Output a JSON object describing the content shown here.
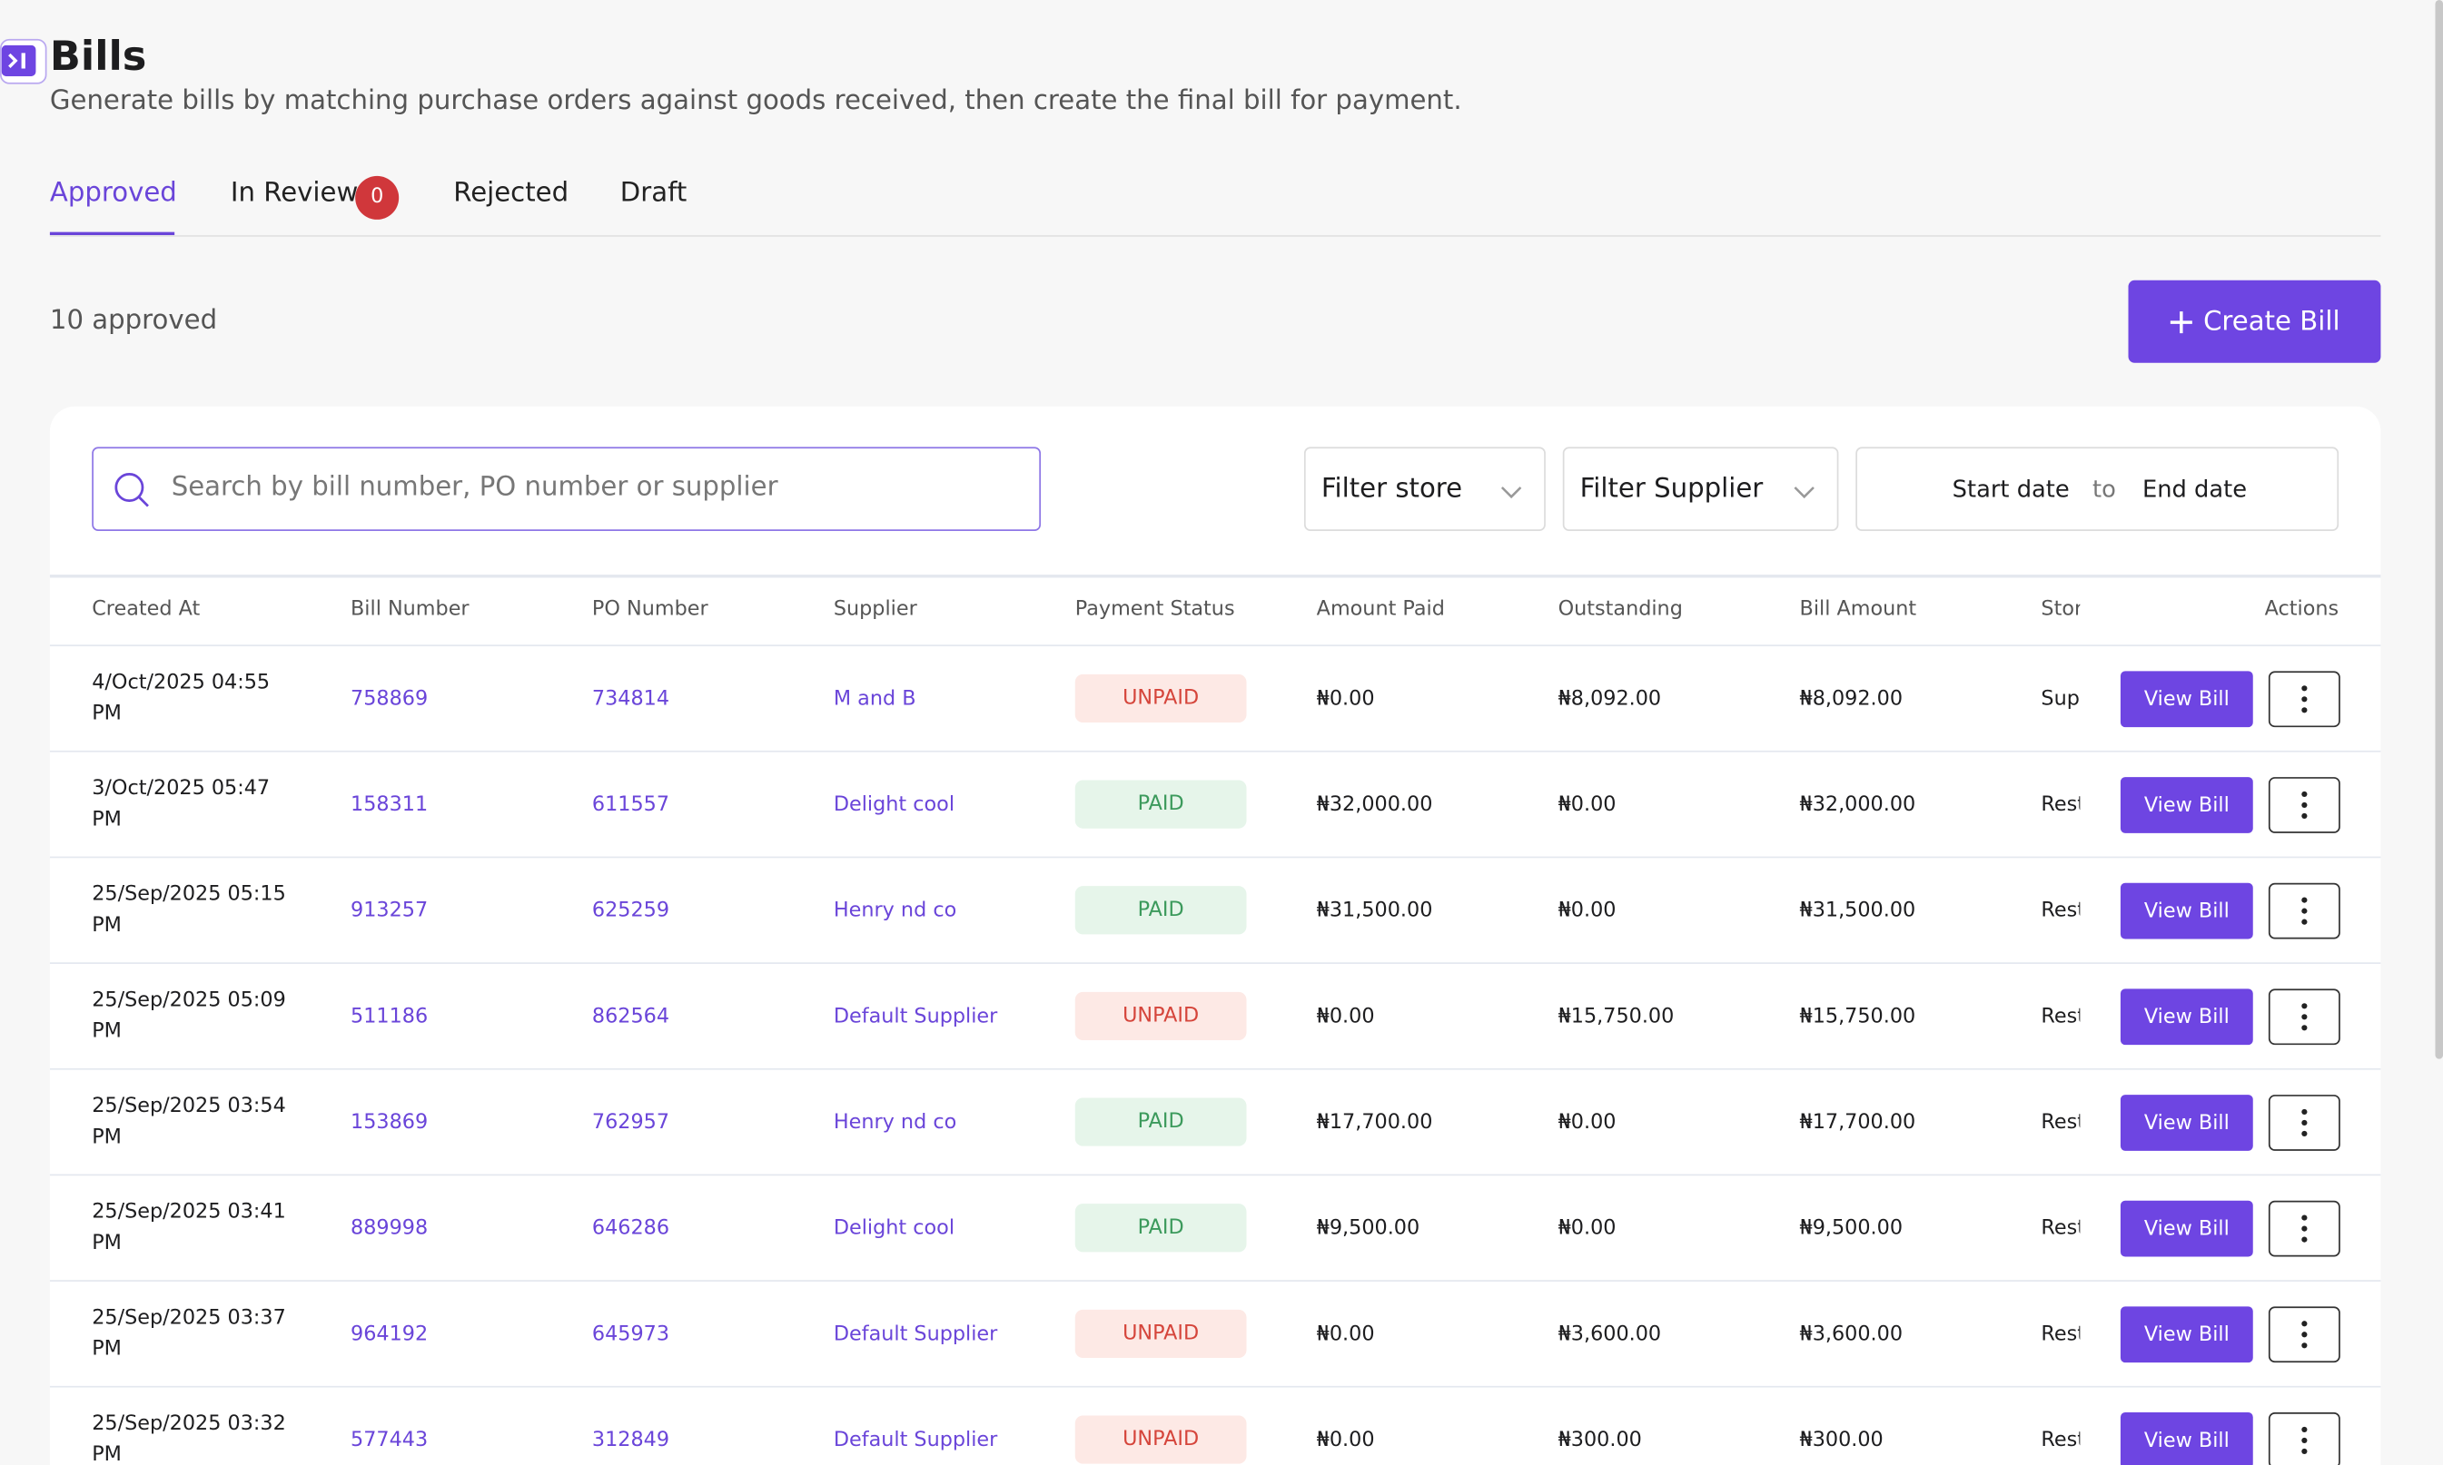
{
  "header": {
    "title": "Bills",
    "subtitle": "Generate bills by matching purchase orders against goods received, then create the final bill for payment."
  },
  "tabs": [
    {
      "label": "Approved"
    },
    {
      "label": "In Review",
      "badge": "0"
    },
    {
      "label": "Rejected"
    },
    {
      "label": "Draft"
    }
  ],
  "summary": "10 approved",
  "create_button": "Create Bill",
  "search_placeholder": "Search by bill number, PO number or supplier",
  "filters": {
    "store": "Filter store",
    "supplier": "Filter Supplier",
    "start_date": "Start date",
    "to": "to",
    "end_date": "End date"
  },
  "table": {
    "columns": [
      "Created At",
      "Bill Number",
      "PO Number",
      "Supplier",
      "Payment Status",
      "Amount Paid",
      "Outstanding",
      "Bill Amount",
      "Stor",
      "Actions"
    ],
    "row_action": "View Bill",
    "rows": [
      [
        "4/Oct/2025 04:55 PM",
        "758869",
        "734814",
        "M and B",
        "UNPAID",
        "₦0.00",
        "₦8,092.00",
        "₦8,092.00",
        "Sup"
      ],
      [
        "3/Oct/2025 05:47 PM",
        "158311",
        "611557",
        "Delight cool",
        "PAID",
        "₦32,000.00",
        "₦0.00",
        "₦32,000.00",
        "Rest"
      ],
      [
        "25/Sep/2025 05:15 PM",
        "913257",
        "625259",
        "Henry nd co",
        "PAID",
        "₦31,500.00",
        "₦0.00",
        "₦31,500.00",
        "Rest"
      ],
      [
        "25/Sep/2025 05:09 PM",
        "511186",
        "862564",
        "Default Supplier",
        "UNPAID",
        "₦0.00",
        "₦15,750.00",
        "₦15,750.00",
        "Rest"
      ],
      [
        "25/Sep/2025 03:54 PM",
        "153869",
        "762957",
        "Henry nd co",
        "PAID",
        "₦17,700.00",
        "₦0.00",
        "₦17,700.00",
        "Rest"
      ],
      [
        "25/Sep/2025 03:41 PM",
        "889998",
        "646286",
        "Delight cool",
        "PAID",
        "₦9,500.00",
        "₦0.00",
        "₦9,500.00",
        "Rest"
      ],
      [
        "25/Sep/2025 03:37 PM",
        "964192",
        "645973",
        "Default Supplier",
        "UNPAID",
        "₦0.00",
        "₦3,600.00",
        "₦3,600.00",
        "Rest"
      ],
      [
        "25/Sep/2025 03:32 PM",
        "577443",
        "312849",
        "Default Supplier",
        "UNPAID",
        "₦0.00",
        "₦300.00",
        "₦300.00",
        "Rest"
      ]
    ]
  }
}
